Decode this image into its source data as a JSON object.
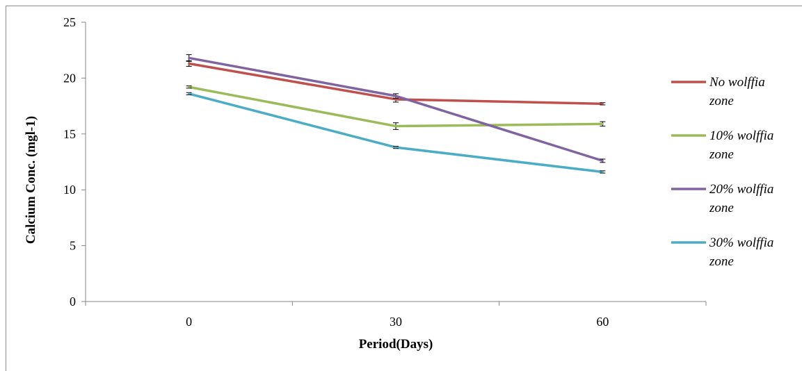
{
  "chart_data": {
    "type": "line",
    "title": "",
    "xlabel": "Period(Days)",
    "ylabel": "Calcium Conc. (mgl-1)",
    "x": [
      "0",
      "30",
      "60"
    ],
    "ylim": [
      0,
      25
    ],
    "yticks": [
      0,
      5,
      10,
      15,
      20,
      25
    ],
    "grid": false,
    "legend": "right",
    "series": [
      {
        "name": "No wolffia zone",
        "color": "#c0504d",
        "values": [
          21.3,
          18.1,
          17.7
        ],
        "errors": [
          0.25,
          0.25,
          0.1
        ]
      },
      {
        "name": "10% wolffia zone",
        "color": "#9bbb59",
        "values": [
          19.2,
          15.7,
          15.9
        ],
        "errors": [
          0.1,
          0.3,
          0.2
        ]
      },
      {
        "name": "20% wolffia zone",
        "color": "#8064a2",
        "values": [
          21.8,
          18.4,
          12.6
        ],
        "errors": [
          0.3,
          0.2,
          0.15
        ]
      },
      {
        "name": "30% wolffia zone",
        "color": "#4bacc6",
        "values": [
          18.6,
          13.8,
          11.6
        ],
        "errors": [
          0.1,
          0.1,
          0.1
        ]
      }
    ]
  }
}
